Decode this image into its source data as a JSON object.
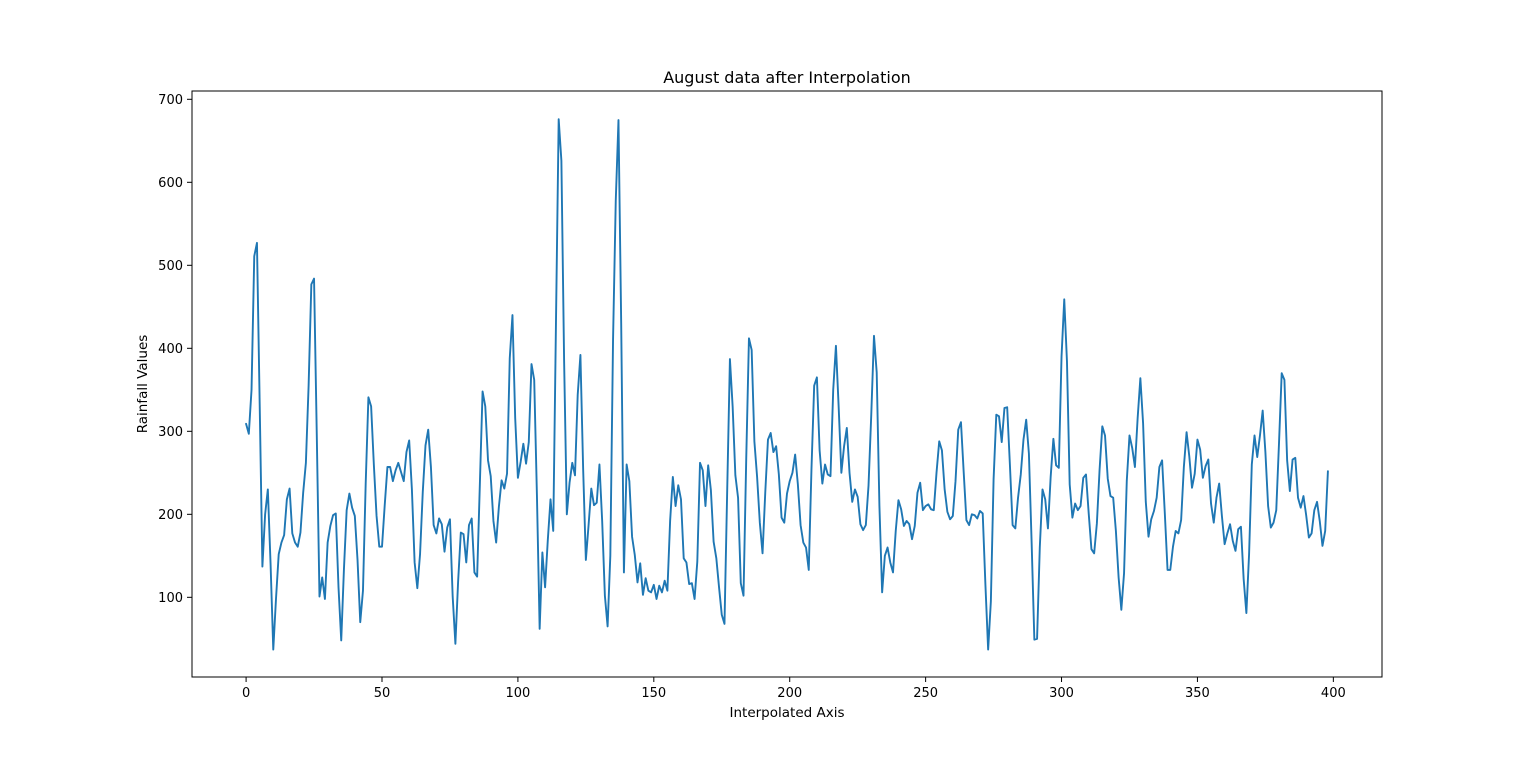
{
  "chart_data": {
    "type": "line",
    "title": "August data after Interpolation",
    "xlabel": "Interpolated Axis",
    "ylabel": "Rainfall Values",
    "xlim": [
      -19.9,
      417.9
    ],
    "ylim": [
      4,
      710
    ],
    "x_ticks": [
      0,
      50,
      100,
      150,
      200,
      250,
      300,
      350,
      400
    ],
    "y_ticks": [
      100,
      200,
      300,
      400,
      500,
      600,
      700
    ],
    "grid": false,
    "legend": "none",
    "series": [
      {
        "color": "#1f77b4",
        "x_start": 0,
        "x_step": 1,
        "values": [
          309,
          297,
          350,
          511,
          527,
          333,
          137,
          200,
          230,
          141,
          37,
          98,
          152,
          166,
          175,
          218,
          231,
          177,
          166,
          161,
          178,
          226,
          262,
          355,
          477,
          484,
          297,
          101,
          124,
          98,
          166,
          186,
          199,
          201,
          112,
          48,
          134,
          205,
          225,
          208,
          198,
          145,
          70,
          108,
          237,
          341,
          330,
          260,
          198,
          161,
          161,
          211,
          257,
          257,
          240,
          253,
          262,
          251,
          240,
          275,
          289,
          230,
          142,
          111,
          152,
          227,
          283,
          302,
          257,
          187,
          177,
          195,
          188,
          155,
          184,
          194,
          101,
          44,
          119,
          178,
          176,
          142,
          187,
          195,
          130,
          125,
          236,
          348,
          330,
          265,
          246,
          192,
          166,
          209,
          241,
          231,
          249,
          388,
          440,
          316,
          244,
          263,
          285,
          261,
          287,
          381,
          362,
          223,
          62,
          154,
          112,
          169,
          218,
          180,
          430,
          676,
          626,
          385,
          200,
          238,
          262,
          247,
          344,
          392,
          255,
          145,
          187,
          231,
          211,
          214,
          260,
          192,
          102,
          65,
          150,
          410,
          578,
          675,
          430,
          130,
          260,
          240,
          173,
          151,
          118,
          141,
          103,
          123,
          108,
          106,
          115,
          98,
          114,
          106,
          120,
          108,
          192,
          245,
          210,
          235,
          218,
          147,
          142,
          116,
          117,
          98,
          143,
          262,
          253,
          210,
          259,
          229,
          167,
          147,
          112,
          79,
          68,
          229,
          387,
          330,
          247,
          220,
          117,
          102,
          267,
          412,
          398,
          288,
          245,
          190,
          153,
          226,
          290,
          298,
          275,
          282,
          248,
          196,
          190,
          225,
          240,
          250,
          272,
          236,
          187,
          166,
          160,
          133,
          254,
          355,
          365,
          277,
          237,
          260,
          248,
          246,
          350,
          403,
          330,
          250,
          282,
          304,
          250,
          215,
          230,
          221,
          188,
          181,
          187,
          235,
          320,
          415,
          371,
          210,
          106,
          150,
          160,
          142,
          130,
          180,
          217,
          206,
          186,
          192,
          188,
          170,
          186,
          226,
          238,
          205,
          210,
          212,
          206,
          205,
          250,
          288,
          277,
          230,
          203,
          194,
          198,
          240,
          302,
          311,
          251,
          193,
          187,
          200,
          199,
          195,
          204,
          201,
          115,
          37,
          95,
          242,
          320,
          318,
          287,
          328,
          329,
          260,
          187,
          183,
          220,
          248,
          290,
          314,
          273,
          166,
          49,
          50,
          160,
          230,
          218,
          183,
          245,
          291,
          259,
          256,
          390,
          459,
          384,
          236,
          196,
          213,
          205,
          210,
          244,
          248,
          201,
          158,
          153,
          189,
          254,
          306,
          295,
          243,
          222,
          220,
          180,
          124,
          85,
          129,
          240,
          295,
          280,
          257,
          316,
          364,
          310,
          215,
          173,
          194,
          204,
          220,
          257,
          265,
          201,
          133,
          133,
          161,
          180,
          177,
          193,
          257,
          299,
          270,
          232,
          249,
          290,
          278,
          244,
          258,
          266,
          213,
          190,
          220,
          237,
          198,
          164,
          177,
          188,
          168,
          156,
          182,
          185,
          122,
          81,
          152,
          260,
          295,
          269,
          295,
          325,
          275,
          210,
          184,
          190,
          205,
          285,
          370,
          362,
          265,
          228,
          266,
          268,
          220,
          208,
          222,
          199,
          172,
          177,
          205,
          215,
          192,
          162,
          180,
          252
        ]
      }
    ]
  }
}
